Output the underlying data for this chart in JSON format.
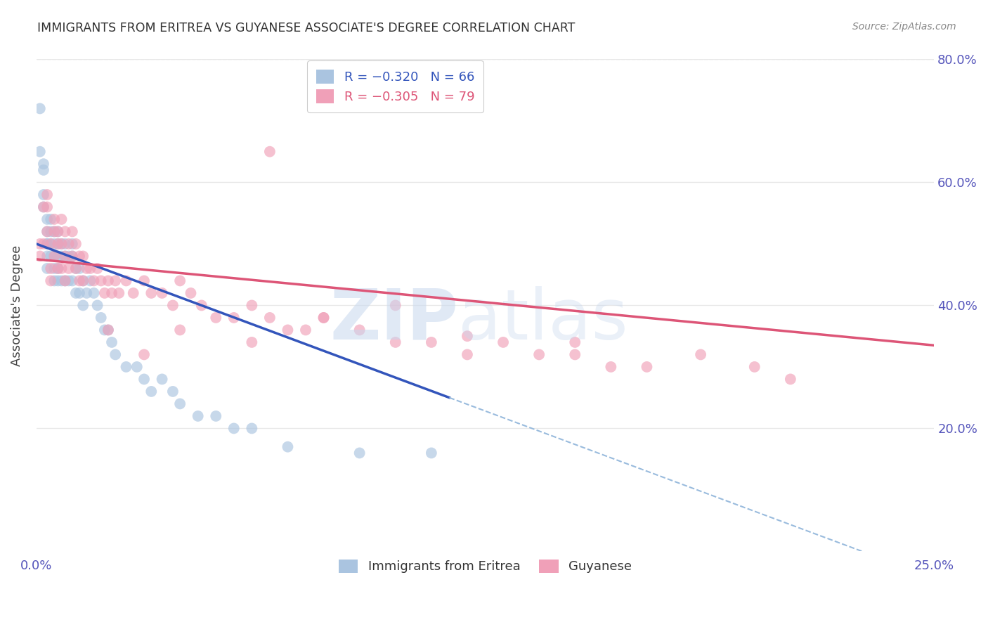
{
  "title": "IMMIGRANTS FROM ERITREA VS GUYANESE ASSOCIATE'S DEGREE CORRELATION CHART",
  "source": "Source: ZipAtlas.com",
  "ylabel": "Associate's Degree",
  "xmin": 0.0,
  "xmax": 0.25,
  "ymin": 0.0,
  "ymax": 0.8,
  "x_ticks": [
    0.0,
    0.05,
    0.1,
    0.15,
    0.2,
    0.25
  ],
  "x_tick_labels": [
    "0.0%",
    "",
    "",
    "",
    "",
    "25.0%"
  ],
  "y_ticks": [
    0.2,
    0.4,
    0.6,
    0.8
  ],
  "y_tick_labels": [
    "20.0%",
    "40.0%",
    "60.0%",
    "80.0%"
  ],
  "background_color": "#ffffff",
  "grid_color": "#e8e8e8",
  "title_color": "#333333",
  "axis_tick_color": "#5555bb",
  "blue_scatter_color": "#aac4e0",
  "pink_scatter_color": "#f0a0b8",
  "blue_line_color": "#3355bb",
  "pink_line_color": "#dd5577",
  "dashed_line_color": "#99bbdd",
  "blue_x": [
    0.001,
    0.001,
    0.002,
    0.002,
    0.002,
    0.002,
    0.003,
    0.003,
    0.003,
    0.003,
    0.003,
    0.003,
    0.004,
    0.004,
    0.004,
    0.004,
    0.005,
    0.005,
    0.005,
    0.005,
    0.005,
    0.006,
    0.006,
    0.006,
    0.006,
    0.006,
    0.007,
    0.007,
    0.007,
    0.008,
    0.008,
    0.008,
    0.009,
    0.009,
    0.01,
    0.01,
    0.01,
    0.011,
    0.011,
    0.012,
    0.012,
    0.013,
    0.013,
    0.014,
    0.015,
    0.016,
    0.017,
    0.018,
    0.019,
    0.02,
    0.021,
    0.022,
    0.025,
    0.028,
    0.03,
    0.032,
    0.035,
    0.038,
    0.04,
    0.045,
    0.05,
    0.055,
    0.06,
    0.07,
    0.09,
    0.11
  ],
  "blue_y": [
    0.72,
    0.65,
    0.63,
    0.62,
    0.58,
    0.56,
    0.54,
    0.52,
    0.5,
    0.5,
    0.48,
    0.46,
    0.54,
    0.52,
    0.5,
    0.48,
    0.52,
    0.5,
    0.48,
    0.46,
    0.44,
    0.52,
    0.5,
    0.48,
    0.46,
    0.44,
    0.5,
    0.48,
    0.44,
    0.5,
    0.48,
    0.44,
    0.48,
    0.44,
    0.5,
    0.48,
    0.44,
    0.46,
    0.42,
    0.46,
    0.42,
    0.44,
    0.4,
    0.42,
    0.44,
    0.42,
    0.4,
    0.38,
    0.36,
    0.36,
    0.34,
    0.32,
    0.3,
    0.3,
    0.28,
    0.26,
    0.28,
    0.26,
    0.24,
    0.22,
    0.22,
    0.2,
    0.2,
    0.17,
    0.16,
    0.16
  ],
  "pink_x": [
    0.001,
    0.001,
    0.002,
    0.002,
    0.003,
    0.003,
    0.003,
    0.004,
    0.004,
    0.004,
    0.005,
    0.005,
    0.005,
    0.006,
    0.006,
    0.006,
    0.007,
    0.007,
    0.007,
    0.008,
    0.008,
    0.008,
    0.009,
    0.009,
    0.01,
    0.01,
    0.011,
    0.011,
    0.012,
    0.012,
    0.013,
    0.013,
    0.014,
    0.015,
    0.016,
    0.017,
    0.018,
    0.019,
    0.02,
    0.021,
    0.022,
    0.023,
    0.025,
    0.027,
    0.03,
    0.032,
    0.035,
    0.038,
    0.04,
    0.043,
    0.046,
    0.05,
    0.055,
    0.06,
    0.065,
    0.07,
    0.075,
    0.08,
    0.09,
    0.1,
    0.11,
    0.12,
    0.13,
    0.14,
    0.15,
    0.16,
    0.17,
    0.185,
    0.2,
    0.21,
    0.065,
    0.1,
    0.08,
    0.12,
    0.15,
    0.06,
    0.03,
    0.02,
    0.04
  ],
  "pink_y": [
    0.5,
    0.48,
    0.56,
    0.5,
    0.58,
    0.56,
    0.52,
    0.5,
    0.46,
    0.44,
    0.54,
    0.52,
    0.48,
    0.52,
    0.5,
    0.46,
    0.54,
    0.5,
    0.46,
    0.52,
    0.48,
    0.44,
    0.5,
    0.46,
    0.52,
    0.48,
    0.5,
    0.46,
    0.48,
    0.44,
    0.48,
    0.44,
    0.46,
    0.46,
    0.44,
    0.46,
    0.44,
    0.42,
    0.44,
    0.42,
    0.44,
    0.42,
    0.44,
    0.42,
    0.44,
    0.42,
    0.42,
    0.4,
    0.44,
    0.42,
    0.4,
    0.38,
    0.38,
    0.4,
    0.38,
    0.36,
    0.36,
    0.38,
    0.36,
    0.34,
    0.34,
    0.32,
    0.34,
    0.32,
    0.32,
    0.3,
    0.3,
    0.32,
    0.3,
    0.28,
    0.65,
    0.4,
    0.38,
    0.35,
    0.34,
    0.34,
    0.32,
    0.36,
    0.36
  ],
  "blue_line_x0": 0.0,
  "blue_line_y0": 0.5,
  "blue_line_x1": 0.115,
  "blue_line_y1": 0.25,
  "blue_line_xmax": 0.25,
  "pink_line_x0": 0.0,
  "pink_line_y0": 0.475,
  "pink_line_x1": 0.25,
  "pink_line_y1": 0.335
}
